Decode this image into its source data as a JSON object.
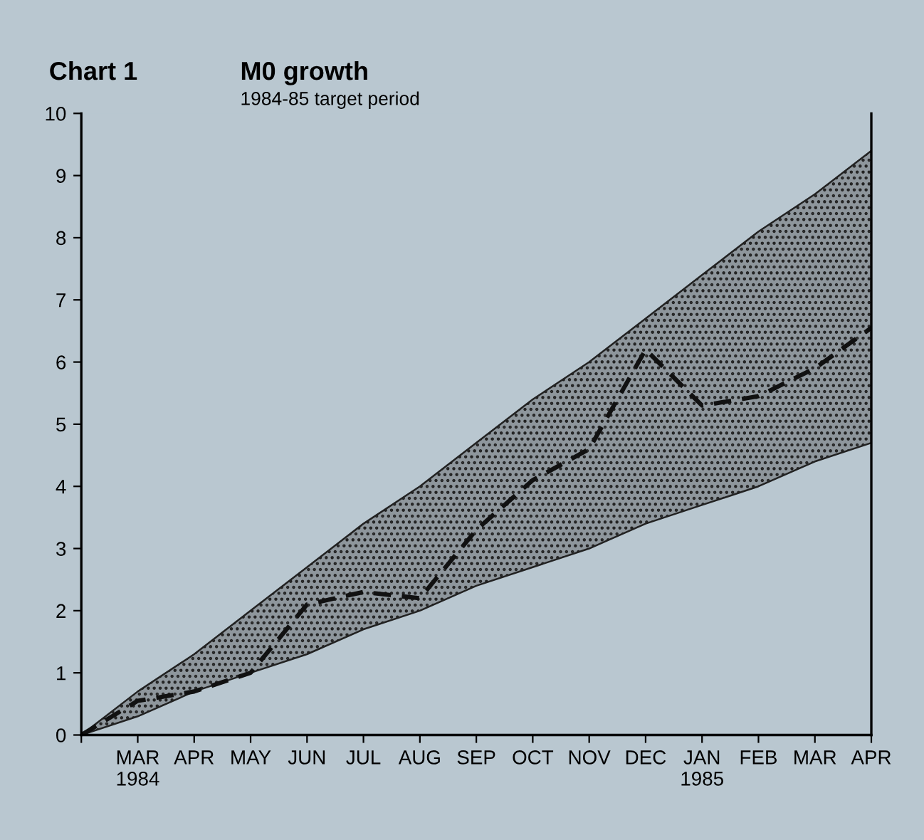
{
  "chart_data": {
    "type": "line",
    "title": "M0 growth",
    "subtitle": "1984-85 target period",
    "annotations": [
      "Chart 1"
    ],
    "categories": [
      null,
      "MAR\n1984",
      "APR",
      "MAY",
      "JUN",
      "JUL",
      "AUG",
      "SEP",
      "OCT",
      "NOV",
      "DEC",
      "JAN\n1985",
      "FEB",
      "MAR",
      "APR"
    ],
    "series": [
      {
        "color": "#111111",
        "line_style": "dashed",
        "values": [
          0,
          0.55,
          0.7,
          1.0,
          2.1,
          2.3,
          2.2,
          3.3,
          4.1,
          4.6,
          6.2,
          5.3,
          5.45,
          5.9,
          6.55
        ],
        "lower": [
          0,
          0.3,
          0.7,
          1.0,
          1.3,
          1.7,
          2.0,
          2.4,
          2.7,
          3.0,
          3.4,
          3.7,
          4.0,
          4.4,
          4.7
        ],
        "upper": [
          0,
          0.7,
          1.3,
          2.0,
          2.7,
          3.4,
          4.0,
          4.7,
          5.4,
          6.0,
          6.7,
          7.4,
          8.1,
          8.7,
          9.4
        ]
      }
    ],
    "ylim": [
      0,
      10
    ],
    "yticks": [
      0,
      1,
      2,
      3,
      4,
      5,
      6,
      7,
      8,
      9,
      10
    ],
    "grid": false,
    "legend": false,
    "marker": "none"
  }
}
